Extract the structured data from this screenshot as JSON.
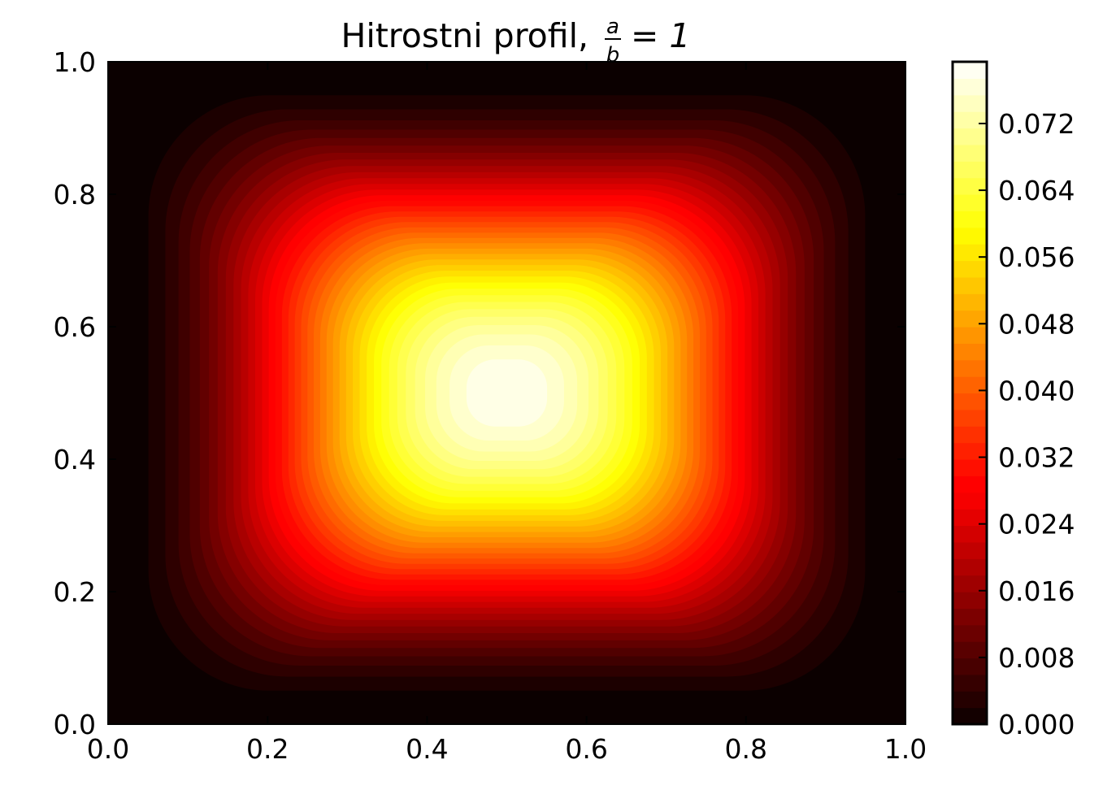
{
  "chart_data": {
    "type": "heatmap",
    "title": "Hitrostni profil,",
    "title_math": {
      "numerator": "a",
      "denominator": "b",
      "rest": "= 1"
    },
    "xlabel": "",
    "ylabel": "",
    "xlim": [
      0.0,
      1.0
    ],
    "ylim": [
      0.0,
      1.0
    ],
    "xticks": [
      "0.0",
      "0.2",
      "0.4",
      "0.6",
      "0.8",
      "1.0"
    ],
    "yticks": [
      "0.0",
      "0.2",
      "0.4",
      "0.6",
      "0.8",
      "1.0"
    ],
    "colormap": "hot",
    "colorbar": {
      "range": [
        0.0,
        0.0794
      ],
      "ticks": [
        "0.000",
        "0.008",
        "0.016",
        "0.024",
        "0.032",
        "0.040",
        "0.048",
        "0.056",
        "0.064",
        "0.072"
      ],
      "levels": 40
    },
    "field": {
      "description_text": "",
      "boundary_value": 0.0,
      "max_value": 0.0794,
      "max_location": [
        0.5,
        0.5
      ],
      "aspect_ratio": 1
    },
    "grid": false
  }
}
